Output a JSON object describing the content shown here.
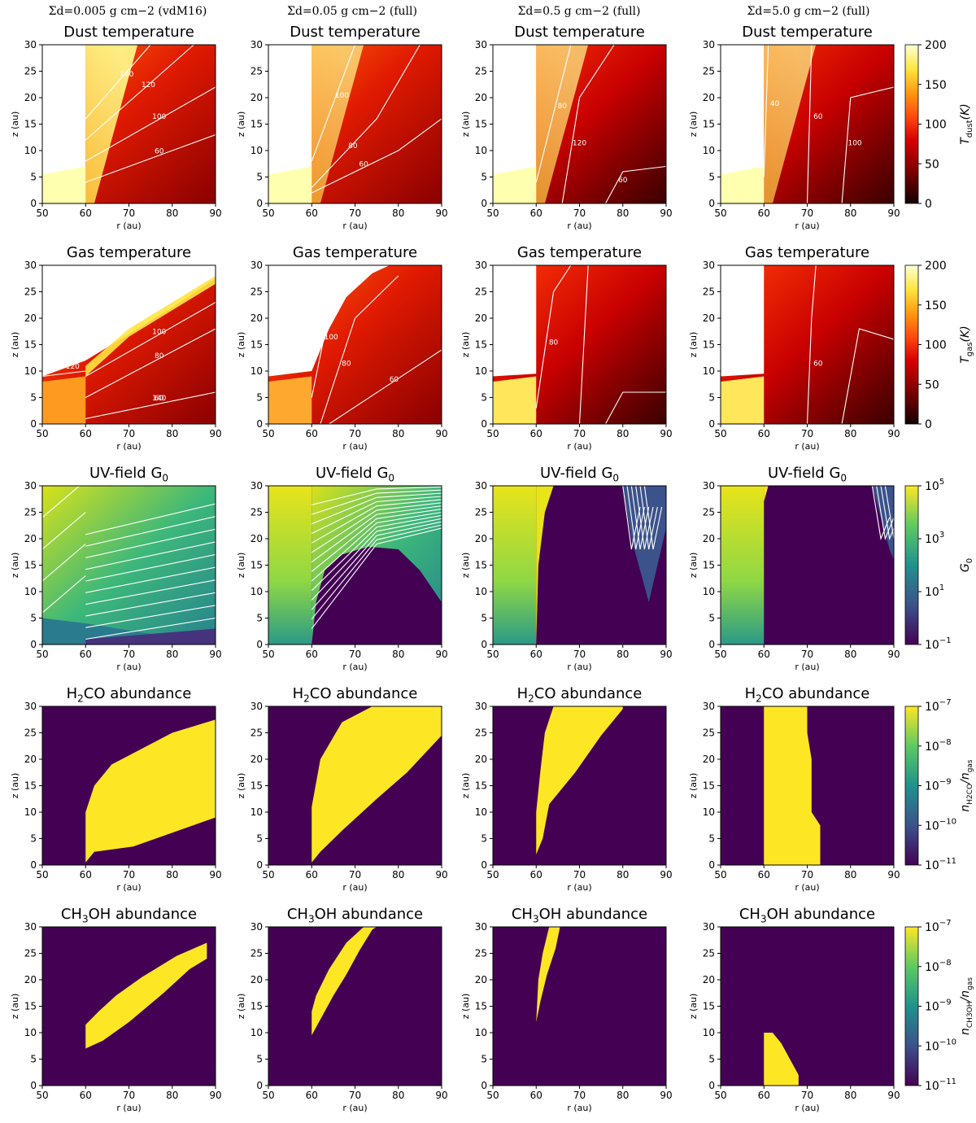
{
  "figure": {
    "column_headers": [
      "Σd=0.005 g cm−2 (vdM16)",
      "Σd=0.05 g cm−2 (full)",
      "Σd=0.5 g cm−2 (full)",
      "Σd=5.0 g cm−2 (full)"
    ]
  },
  "chart_data": [
    {
      "type": "heatmap",
      "row": "dust_temperature",
      "title": "Dust temperature",
      "xlabel": "r (au)",
      "ylabel": "z (au)",
      "xlim": [
        50,
        90
      ],
      "ylim": [
        0,
        30
      ],
      "xticks": [
        50,
        60,
        70,
        80,
        90
      ],
      "yticks": [
        0,
        5,
        10,
        15,
        20,
        25,
        30
      ],
      "colormap": "hot",
      "colorbar": {
        "label": "T_dust(K)",
        "ticks": [
          "0",
          "50",
          "100",
          "150",
          "200"
        ],
        "range": [
          0,
          200
        ]
      },
      "panels": [
        {
          "column": "Σd=0.005 g cm−2 (vdM16)",
          "contour_labels": [
            "60",
            "100",
            "120",
            "160"
          ]
        },
        {
          "column": "Σd=0.05 g cm−2 (full)",
          "contour_labels": [
            "60",
            "80",
            "100"
          ]
        },
        {
          "column": "Σd=0.5 g cm−2 (full)",
          "contour_labels": [
            "60",
            "80",
            "120"
          ]
        },
        {
          "column": "Σd=5.0 g cm−2 (full)",
          "contour_labels": [
            "40",
            "60",
            "100"
          ]
        }
      ]
    },
    {
      "type": "heatmap",
      "row": "gas_temperature",
      "title": "Gas temperature",
      "xlabel": "r (au)",
      "ylabel": "z (au)",
      "xlim": [
        50,
        90
      ],
      "ylim": [
        0,
        30
      ],
      "xticks": [
        50,
        60,
        70,
        80,
        90
      ],
      "yticks": [
        0,
        5,
        10,
        15,
        20,
        25,
        30
      ],
      "colormap": "hot",
      "colorbar": {
        "label": "T_gas(K)",
        "ticks": [
          "0",
          "50",
          "100",
          "150",
          "200"
        ],
        "range": [
          0,
          200
        ]
      },
      "panels": [
        {
          "column": "Σd=0.005 g cm−2 (vdM16)",
          "contour_labels": [
            "60",
            "80",
            "100",
            "120",
            "140"
          ]
        },
        {
          "column": "Σd=0.05 g cm−2 (full)",
          "contour_labels": [
            "60",
            "80",
            "100"
          ]
        },
        {
          "column": "Σd=0.5 g cm−2 (full)",
          "contour_labels": [
            "80"
          ]
        },
        {
          "column": "Σd=5.0 g cm−2 (full)",
          "contour_labels": [
            "60"
          ]
        }
      ]
    },
    {
      "type": "heatmap",
      "row": "uv_field",
      "title": "UV-field G",
      "title_sub": "0",
      "xlabel": "r (au)",
      "ylabel": "z (au)",
      "xlim": [
        50,
        90
      ],
      "ylim": [
        0,
        30
      ],
      "xticks": [
        50,
        60,
        70,
        80,
        90
      ],
      "yticks": [
        0,
        5,
        10,
        15,
        20,
        25,
        30
      ],
      "colormap": "viridis",
      "scale": "log",
      "colorbar": {
        "label": "G_0",
        "ticks": [
          "10^5",
          "10^3",
          "10^1",
          "10^-1"
        ],
        "range": [
          0.1,
          100000
        ]
      },
      "panels": [
        {
          "column": "Σd=0.005 g cm−2 (vdM16)"
        },
        {
          "column": "Σd=0.05 g cm−2 (full)"
        },
        {
          "column": "Σd=0.5 g cm−2 (full)"
        },
        {
          "column": "Σd=5.0 g cm−2 (full)"
        }
      ]
    },
    {
      "type": "heatmap",
      "row": "h2co_abundance",
      "title": "H2CO abundance",
      "title_pre": "H",
      "title_sub": "2",
      "title_post": "CO abundance",
      "xlabel": "r (au)",
      "ylabel": "z (au)",
      "xlim": [
        50,
        90
      ],
      "ylim": [
        0,
        30
      ],
      "xticks": [
        50,
        60,
        70,
        80,
        90
      ],
      "yticks": [
        0,
        5,
        10,
        15,
        20,
        25,
        30
      ],
      "colormap": "viridis",
      "scale": "log",
      "colorbar": {
        "label": "n_H2CO/n_gas",
        "ticks": [
          "10^-7",
          "10^-8",
          "10^-9",
          "10^-10",
          "10^-11"
        ],
        "range": [
          1e-11,
          1e-07
        ]
      },
      "panels": [
        {
          "column": "Σd=0.005 g cm−2 (vdM16)",
          "high_region": [
            [
              60,
              0.5
            ],
            [
              62,
              2.5
            ],
            [
              71,
              3.5
            ],
            [
              90,
              9
            ],
            [
              90,
              27.5
            ],
            [
              80,
              25
            ],
            [
              73,
              22
            ],
            [
              66,
              19
            ],
            [
              62,
              15
            ],
            [
              60,
              10
            ]
          ]
        },
        {
          "column": "Σd=0.05 g cm−2 (full)",
          "high_region": [
            [
              60,
              0.5
            ],
            [
              62,
              2.5
            ],
            [
              67,
              6.5
            ],
            [
              75,
              12.5
            ],
            [
              82,
              17.5
            ],
            [
              90,
              24.5
            ],
            [
              90,
              30
            ],
            [
              74,
              30
            ],
            [
              67,
              27
            ],
            [
              62,
              20
            ],
            [
              60,
              11
            ]
          ]
        },
        {
          "column": "Σd=0.5 g cm−2 (full)",
          "high_region": [
            [
              60,
              2
            ],
            [
              61.5,
              5
            ],
            [
              63,
              11.5
            ],
            [
              69,
              17.5
            ],
            [
              75,
              24.5
            ],
            [
              80,
              29.5
            ],
            [
              80,
              30
            ],
            [
              64,
              30
            ],
            [
              62,
              25
            ],
            [
              61,
              18
            ],
            [
              60,
              10
            ]
          ]
        },
        {
          "column": "Σd=5.0 g cm−2 (full)",
          "high_region": [
            [
              60,
              0
            ],
            [
              73,
              0
            ],
            [
              73,
              7.5
            ],
            [
              71,
              10
            ],
            [
              71,
              20
            ],
            [
              70,
              25
            ],
            [
              70,
              30
            ],
            [
              60,
              30
            ]
          ]
        }
      ]
    },
    {
      "type": "heatmap",
      "row": "ch3oh_abundance",
      "title": "CH3OH abundance",
      "title_pre": "CH",
      "title_sub": "3",
      "title_post": "OH abundance",
      "xlabel": "r (au)",
      "ylabel": "z (au)",
      "xlim": [
        50,
        90
      ],
      "ylim": [
        0,
        30
      ],
      "xticks": [
        50,
        60,
        70,
        80,
        90
      ],
      "yticks": [
        0,
        5,
        10,
        15,
        20,
        25,
        30
      ],
      "colormap": "viridis",
      "scale": "log",
      "colorbar": {
        "label": "n_CH3OH/n_gas",
        "ticks": [
          "10^-7",
          "10^-8",
          "10^-9",
          "10^-10",
          "10^-11"
        ],
        "range": [
          1e-11,
          1e-07
        ]
      },
      "panels": [
        {
          "column": "Σd=0.005 g cm−2 (vdM16)",
          "high_region": [
            [
              60,
              7
            ],
            [
              64,
              8.5
            ],
            [
              70,
              12
            ],
            [
              78,
              17.5
            ],
            [
              84,
              22
            ],
            [
              88,
              24
            ],
            [
              88,
              27
            ],
            [
              81,
              24.5
            ],
            [
              73,
              20.5
            ],
            [
              67,
              17
            ],
            [
              63,
              14
            ],
            [
              60,
              11.5
            ]
          ]
        },
        {
          "column": "Σd=0.05 g cm−2 (full)",
          "high_region": [
            [
              60,
              9.5
            ],
            [
              62,
              12.5
            ],
            [
              65,
              17
            ],
            [
              68,
              21
            ],
            [
              71,
              25.5
            ],
            [
              74,
              29.5
            ],
            [
              75,
              30
            ],
            [
              72,
              30
            ],
            [
              68,
              27
            ],
            [
              64,
              22
            ],
            [
              61,
              17
            ],
            [
              60,
              14
            ]
          ]
        },
        {
          "column": "Σd=0.5 g cm−2 (full)",
          "high_region": [
            [
              60,
              12
            ],
            [
              61,
              16
            ],
            [
              62.5,
              21
            ],
            [
              64.5,
              26
            ],
            [
              65.5,
              30
            ],
            [
              63,
              30
            ],
            [
              61.5,
              25
            ],
            [
              60.5,
              20
            ]
          ]
        },
        {
          "column": "Σd=5.0 g cm−2 (full)",
          "high_region": [
            [
              60,
              0
            ],
            [
              68,
              0
            ],
            [
              68,
              2
            ],
            [
              66,
              5
            ],
            [
              64,
              8
            ],
            [
              62,
              10
            ],
            [
              60,
              10
            ]
          ]
        }
      ]
    }
  ]
}
